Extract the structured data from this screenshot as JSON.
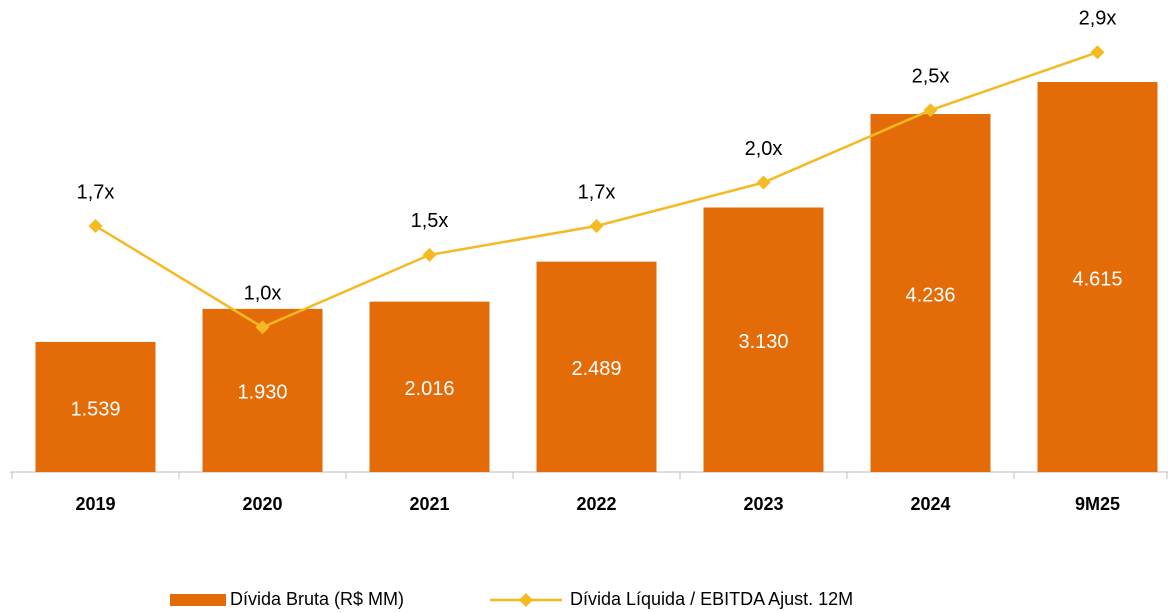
{
  "chart_data": {
    "type": "bar-line",
    "categories": [
      "2019",
      "2020",
      "2021",
      "2022",
      "2023",
      "2024",
      "9M25"
    ],
    "series": [
      {
        "name": "Dívida Bruta (R$ MM)",
        "type": "bar",
        "color": "#e36c09",
        "values": [
          1539,
          1930,
          2016,
          2489,
          3130,
          4236,
          4615
        ],
        "value_labels": [
          "1.539",
          "1.930",
          "2.016",
          "2.489",
          "3.130",
          "4.236",
          "4.615"
        ]
      },
      {
        "name": "Dívida Líquida / EBITDA Ajust. 12M",
        "type": "line",
        "axis": "y2",
        "color": "#f5b921",
        "values": [
          1.7,
          1.0,
          1.5,
          1.7,
          2.0,
          2.5,
          2.9
        ],
        "value_labels": [
          "1,7x",
          "1,0x",
          "1,5x",
          "1,7x",
          "2,0x",
          "2,5x",
          "2,9x"
        ]
      }
    ],
    "ylim": [
      0,
      5112
    ],
    "y2lim": [
      0,
      2.985
    ],
    "legend": "bottom"
  }
}
